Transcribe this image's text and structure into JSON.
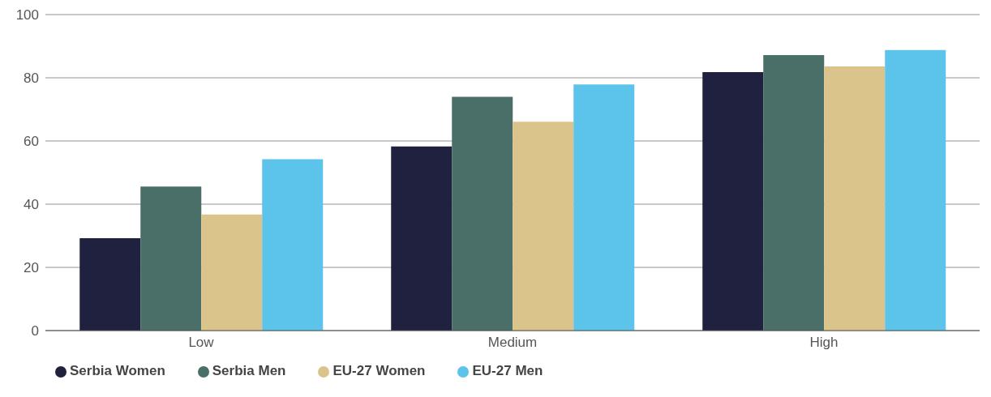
{
  "chart_data": {
    "type": "bar",
    "categories": [
      "Low",
      "Medium",
      "High"
    ],
    "series": [
      {
        "name": "Serbia Women",
        "color": "#20203f",
        "values": [
          29.2,
          58.3,
          81.8
        ]
      },
      {
        "name": "Serbia Men",
        "color": "#4a6e68",
        "values": [
          45.6,
          74.0,
          87.2
        ]
      },
      {
        "name": "EU-27 Women",
        "color": "#dbc48c",
        "values": [
          36.7,
          66.1,
          83.6
        ]
      },
      {
        "name": "EU-27 Men",
        "color": "#5cc3ea",
        "values": [
          54.2,
          77.9,
          88.8
        ]
      }
    ],
    "ylim": [
      0,
      100
    ],
    "yticks": [
      0,
      20,
      40,
      60,
      80,
      100
    ],
    "grid": "y",
    "legend": "bottom left"
  }
}
